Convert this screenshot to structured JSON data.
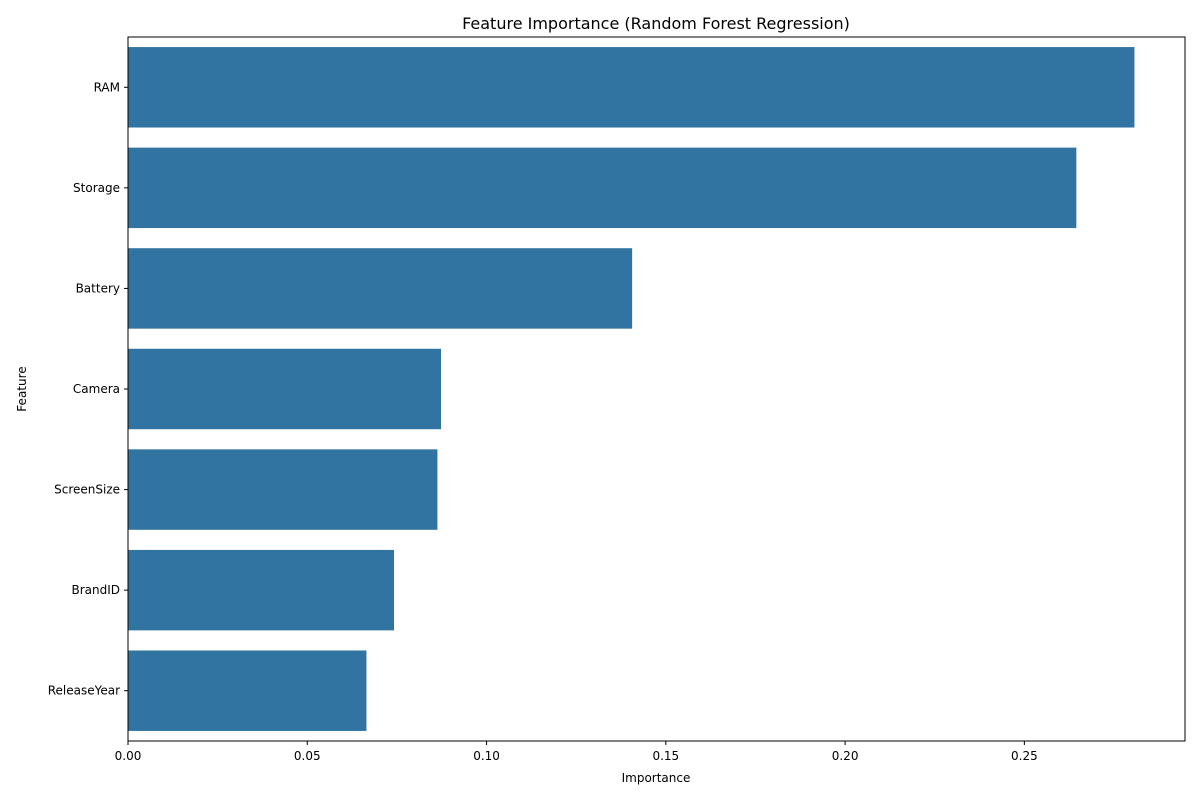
{
  "chart_data": {
    "type": "bar",
    "orientation": "horizontal",
    "title": "Feature Importance (Random Forest Regression)",
    "xlabel": "Importance",
    "ylabel": "Feature",
    "categories": [
      "RAM",
      "Storage",
      "Battery",
      "Camera",
      "ScreenSize",
      "BrandID",
      "ReleaseYear"
    ],
    "values": [
      0.2807,
      0.2645,
      0.1406,
      0.0873,
      0.0863,
      0.0742,
      0.0665
    ],
    "xlim": [
      0,
      0.2948
    ],
    "xticks": [
      0.0,
      0.05,
      0.1,
      0.15,
      0.2,
      0.25
    ],
    "xtick_labels": [
      "0.00",
      "0.05",
      "0.10",
      "0.15",
      "0.20",
      "0.25"
    ],
    "grid": false,
    "bar_color": "#3274a1"
  }
}
